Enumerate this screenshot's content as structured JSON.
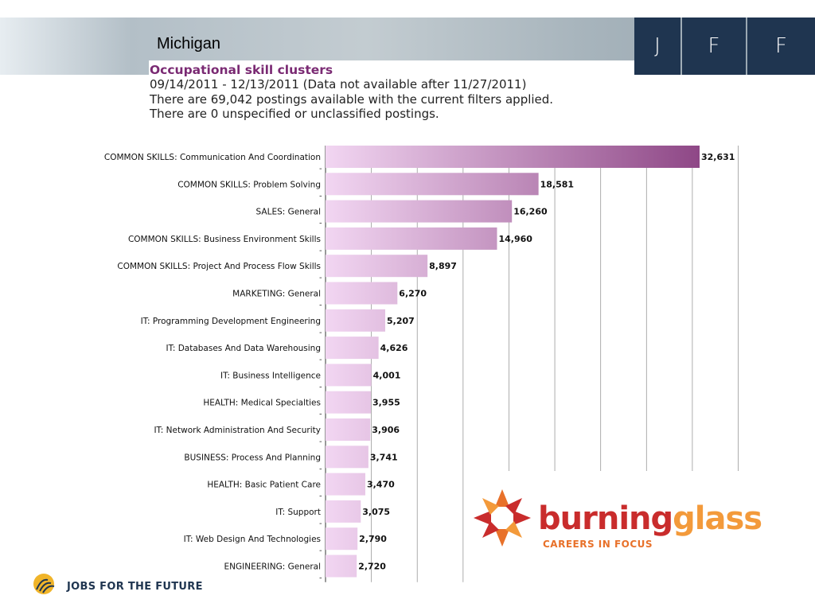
{
  "header": {
    "region": "Michigan",
    "jff_letters": [
      "J",
      "F",
      "F"
    ]
  },
  "report": {
    "title": "Occupational skill clusters",
    "date_range": "09/14/2011 - 12/13/2011 (Data not available after 11/27/2011)",
    "postings_line": "There are 69,042 postings available with the current filters applied.",
    "unspecified_line": "There are 0 unspecified or unclassified postings."
  },
  "chart_data": {
    "type": "bar",
    "orientation": "horizontal",
    "categories": [
      "COMMON SKILLS: Communication And Coordination",
      "COMMON SKILLS: Problem Solving",
      "SALES: General",
      "COMMON SKILLS: Business Environment Skills",
      "COMMON SKILLS: Project And Process Flow Skills",
      "MARKETING: General",
      "IT: Programming Development Engineering",
      "IT: Databases And Data Warehousing",
      "IT: Business Intelligence",
      "HEALTH: Medical Specialties",
      "IT: Network Administration And Security",
      "BUSINESS: Process And Planning",
      "HEALTH: Basic Patient Care",
      "IT: Support",
      "IT: Web Design And Technologies",
      "ENGINEERING: General"
    ],
    "values": [
      32631,
      18581,
      16260,
      14960,
      8897,
      6270,
      5207,
      4626,
      4001,
      3955,
      3906,
      3741,
      3470,
      3075,
      2790,
      2720
    ],
    "value_labels": [
      "32,631",
      "18,581",
      "16,260",
      "14,960",
      "8,897",
      "6,270",
      "5,207",
      "4,626",
      "4,001",
      "3,955",
      "3,906",
      "3,741",
      "3,470",
      "3,075",
      "2,790",
      "2,720"
    ],
    "label_separator": "-",
    "xlim": [
      0,
      36000
    ],
    "grid": true,
    "colors": {
      "bar_start": "#f2d6f2",
      "bar_end": "#8e4786"
    }
  },
  "logos": {
    "burning_glass": {
      "word_part1": "burning",
      "word_part2": "glass",
      "tagline": "CAREERS IN FOCUS"
    },
    "jff_footer": "JOBS FOR THE FUTURE"
  },
  "colors": {
    "banner_dark": "#1f3550",
    "title_purple": "#7a2a73",
    "burning_orange": "#e8712a",
    "burning_red": "#c92c2c",
    "glass_orange": "#f39a3b"
  }
}
